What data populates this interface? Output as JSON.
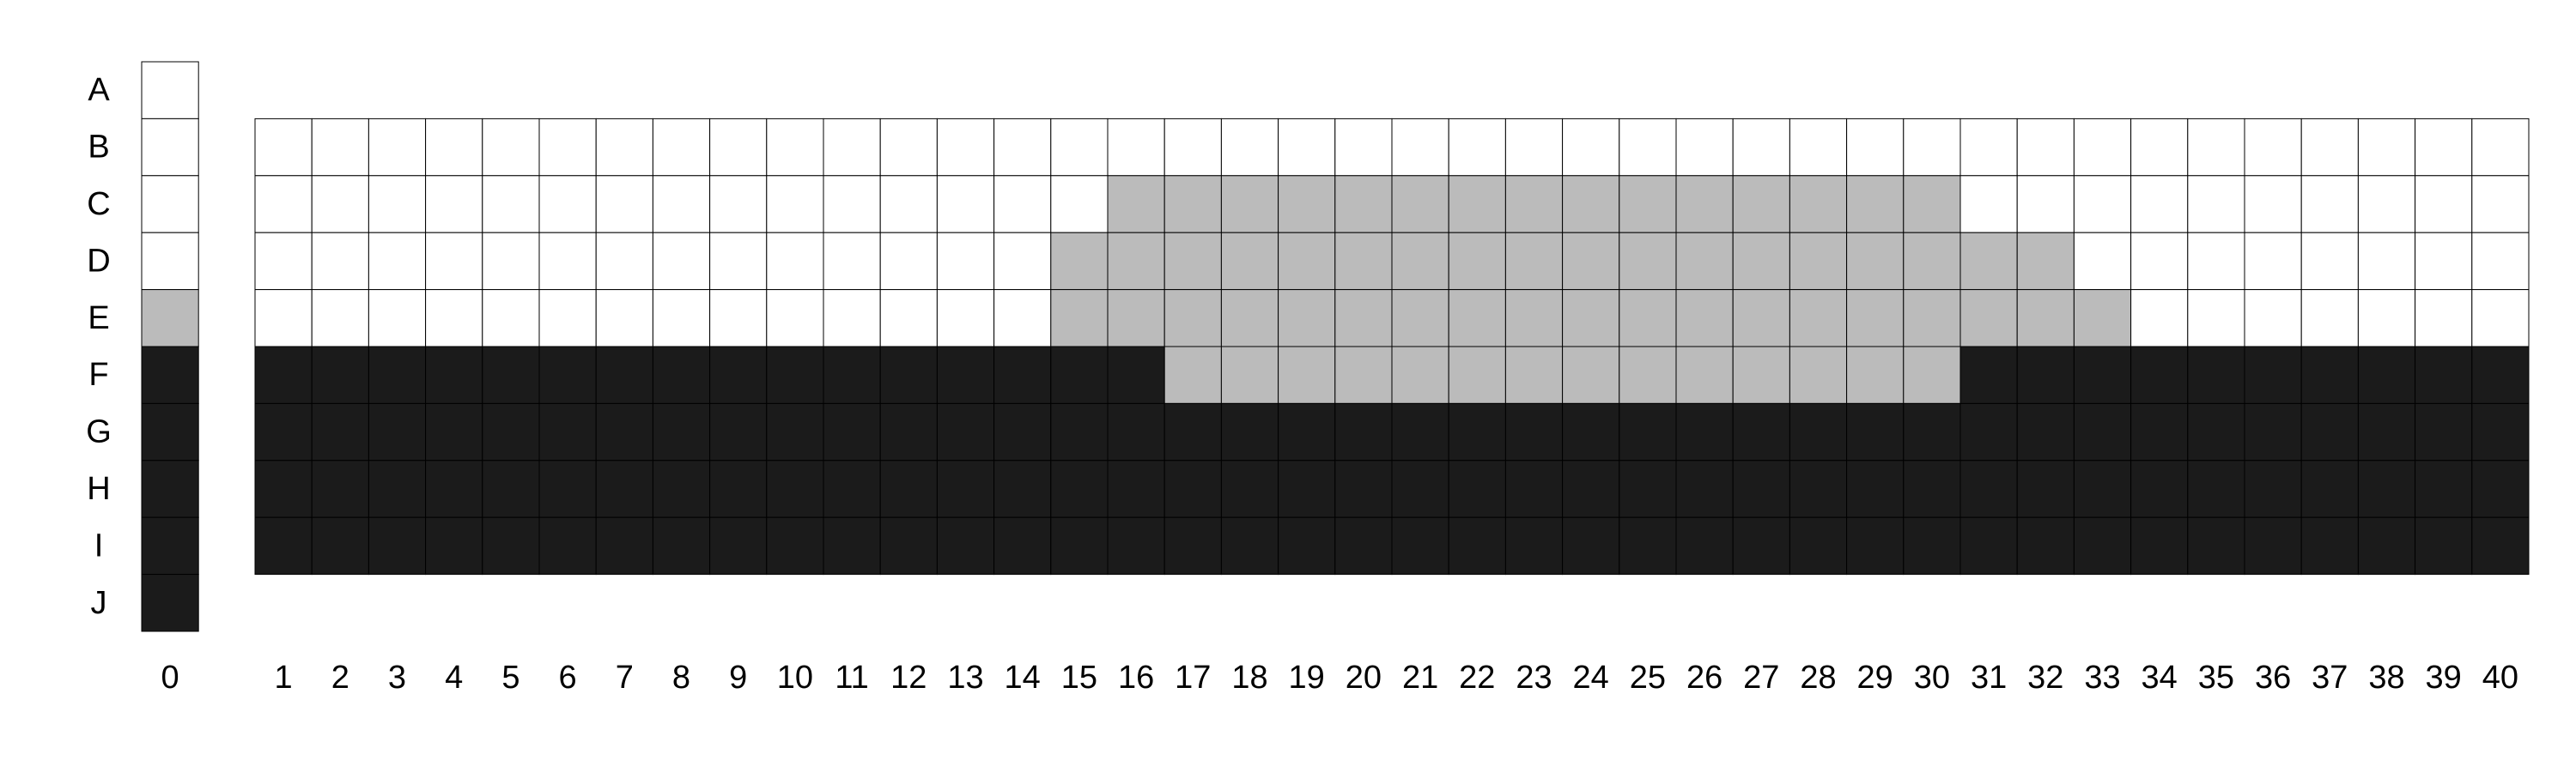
{
  "colors": {
    "white": "#ffffff",
    "gray": "#bbbbbb",
    "black": "#1b1b1b",
    "line": "#000000"
  },
  "rows": [
    "A",
    "B",
    "C",
    "D",
    "E",
    "F",
    "G",
    "H",
    "I",
    "J"
  ],
  "reference_column": {
    "label": "0",
    "cells": [
      "W",
      "W",
      "W",
      "W",
      "G",
      "B",
      "B",
      "B",
      "B",
      "B"
    ]
  },
  "columns": [
    "1",
    "2",
    "3",
    "4",
    "5",
    "6",
    "7",
    "8",
    "9",
    "10",
    "11",
    "12",
    "13",
    "14",
    "15",
    "16",
    "17",
    "18",
    "19",
    "20",
    "21",
    "22",
    "23",
    "24",
    "25",
    "26",
    "27",
    "28",
    "29",
    "30",
    "31",
    "32",
    "33",
    "34",
    "35",
    "36",
    "37",
    "38",
    "39",
    "40"
  ],
  "grid": {
    "first_row": "B",
    "rows": [
      "WWWWWWWWWWWWWWWWWWWWWWWWWWWWWWWWWWWWWWWW",
      "WWWWWWWWWWWWWWWGGGGGGGGGGGGGGGWWWWWWWWWW",
      "WWWWWWWWWWWWWWGGGGGGGGGGGGGGGGGGWWWWWWWW",
      "WWWWWWWWWWWWWWGGGGGGGGGGGGGGGGGGGWWWWWWW",
      "BBBBBBBBBBBBBBBBGGGGGGGGGGGGGGBBBBBBBBBB",
      "BBBBBBBBBBBBBBBBBBBBBBBBBBBBBBBBBBBBBBBB",
      "BBBBBBBBBBBBBBBBBBBBBBBBBBBBBBBBBBBBBBBB",
      "BBBBBBBBBBBBBBBBBBBBBBBBBBBBBBBBBBBBBBBB"
    ]
  }
}
